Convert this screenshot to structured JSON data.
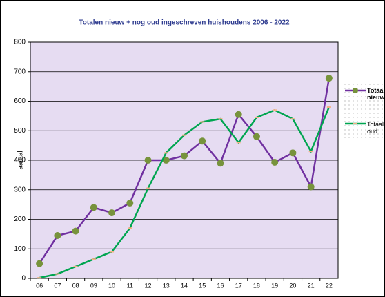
{
  "chart_data": {
    "type": "line",
    "title": "Totalen nieuw + nog oud ingeschreven huishoudens  2006 - 2022",
    "y_label": "aantal",
    "categories": [
      "06",
      "07",
      "08",
      "09",
      "10",
      "11",
      "12",
      "13",
      "14",
      "15",
      "16",
      "17",
      "18",
      "19",
      "20",
      "21",
      "22"
    ],
    "series": [
      {
        "name": "Totaal nieuw",
        "color": "#7030a0",
        "marker_color": "#77933c",
        "values": [
          50,
          145,
          160,
          240,
          222,
          255,
          400,
          400,
          415,
          465,
          390,
          555,
          480,
          393,
          425,
          310,
          678
        ]
      },
      {
        "name": "Totaal oud",
        "color": "#00a550",
        "marker_color": "#f4b183",
        "values": [
          2,
          15,
          40,
          65,
          90,
          170,
          305,
          425,
          485,
          530,
          540,
          460,
          545,
          570,
          540,
          430,
          580
        ]
      }
    ],
    "ylim": [
      0,
      800
    ],
    "yticks": [
      0,
      100,
      200,
      300,
      400,
      500,
      600,
      700,
      800
    ],
    "grid": true,
    "legend": "right",
    "plot_background": "#e6dcf2"
  }
}
